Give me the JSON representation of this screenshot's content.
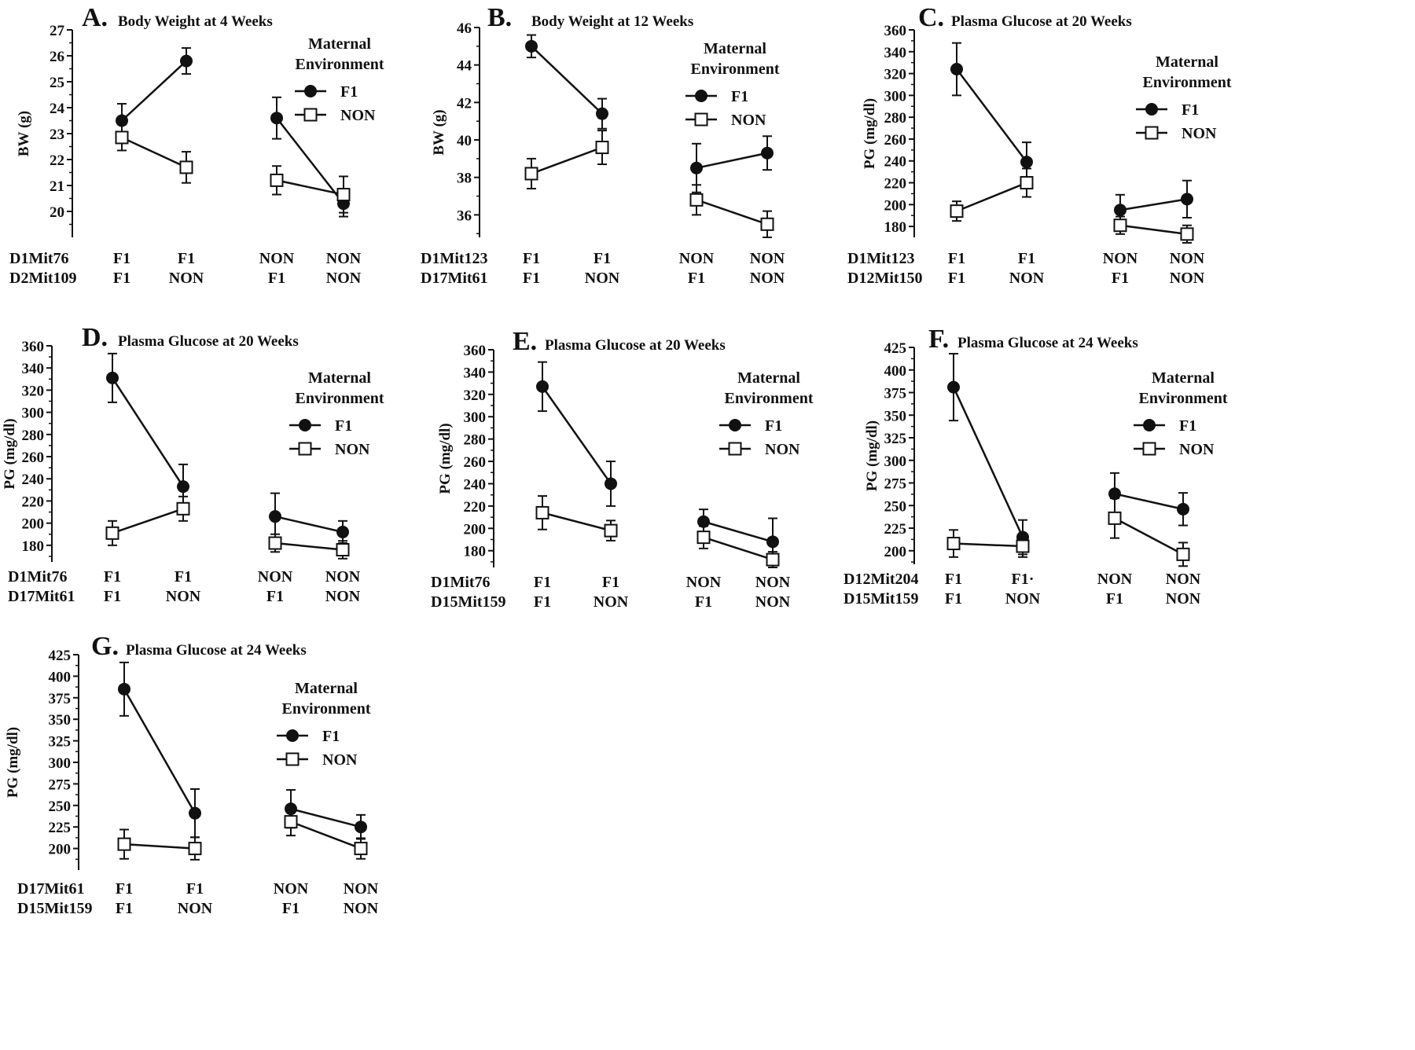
{
  "legend": {
    "title_line1": "Maternal",
    "title_line2": "Environment",
    "series": [
      {
        "name": "F1",
        "marker": "filled-circle"
      },
      {
        "name": "NON",
        "marker": "open-square"
      }
    ]
  },
  "colors": {
    "ink": "#111111",
    "open_fill": "#ffffff"
  },
  "chart_data": [
    {
      "panel": "A.",
      "type": "line",
      "title": "Body Weight at 4 Weeks",
      "ylabel": "BW (g)",
      "ylim": [
        19,
        27
      ],
      "yticks": [
        20,
        21,
        22,
        23,
        24,
        25,
        26,
        27
      ],
      "genotype_rows": [
        {
          "label": "D1Mit76",
          "values": [
            "F1",
            "F1",
            "NON",
            "NON"
          ]
        },
        {
          "label": "D2Mit109",
          "values": [
            "F1",
            "NON",
            "F1",
            "NON"
          ]
        }
      ],
      "series": [
        {
          "name": "F1",
          "values": [
            23.5,
            25.8,
            23.6,
            20.3
          ],
          "errors": [
            0.65,
            0.5,
            0.8,
            0.5
          ]
        },
        {
          "name": "NON",
          "values": [
            22.85,
            21.7,
            21.2,
            20.65
          ],
          "errors": [
            0.5,
            0.6,
            0.55,
            0.7
          ]
        }
      ]
    },
    {
      "panel": "B.",
      "type": "line",
      "title": "Body Weight at 12 Weeks",
      "ylabel": "BW (g)",
      "ylim": [
        34.8,
        46
      ],
      "yticks": [
        36,
        38,
        40,
        42,
        44,
        46
      ],
      "genotype_rows": [
        {
          "label": "D1Mit123",
          "values": [
            "F1",
            "F1",
            "NON",
            "NON"
          ]
        },
        {
          "label": "D17Mit61",
          "values": [
            "F1",
            "NON",
            "F1",
            "NON"
          ]
        }
      ],
      "series": [
        {
          "name": "F1",
          "values": [
            45.0,
            41.4,
            38.5,
            39.3
          ],
          "errors": [
            0.6,
            0.8,
            1.3,
            0.9
          ]
        },
        {
          "name": "NON",
          "values": [
            38.2,
            39.6,
            36.8,
            35.5
          ],
          "errors": [
            0.8,
            0.9,
            0.8,
            0.7
          ]
        }
      ]
    },
    {
      "panel": "C.",
      "type": "line",
      "title": "Plasma Glucose at 20 Weeks",
      "ylabel": "PG (mg/dl)",
      "ylim": [
        170,
        360
      ],
      "yticks": [
        180,
        200,
        220,
        240,
        260,
        280,
        300,
        320,
        340,
        360
      ],
      "genotype_rows": [
        {
          "label": "D1Mit123",
          "values": [
            "F1",
            "F1",
            "NON",
            "NON"
          ]
        },
        {
          "label": "D12Mit150",
          "values": [
            "F1",
            "NON",
            "F1",
            "NON"
          ]
        }
      ],
      "series": [
        {
          "name": "F1",
          "values": [
            324,
            239,
            195,
            205
          ],
          "errors": [
            24,
            18,
            14,
            17
          ]
        },
        {
          "name": "NON",
          "values": [
            194,
            220,
            181,
            173
          ],
          "errors": [
            9,
            13,
            8,
            8
          ]
        }
      ]
    },
    {
      "panel": "D.",
      "type": "line",
      "title": "Plasma Glucose at 20 Weeks",
      "ylabel": "PG (mg/dl)",
      "ylim": [
        165,
        360
      ],
      "yticks": [
        180,
        200,
        220,
        240,
        260,
        280,
        300,
        320,
        340,
        360
      ],
      "genotype_rows": [
        {
          "label": "D1Mit76",
          "values": [
            "F1",
            "F1",
            "NON",
            "NON"
          ]
        },
        {
          "label": "D17Mit61",
          "values": [
            "F1",
            "NON",
            "F1",
            "NON"
          ]
        }
      ],
      "series": [
        {
          "name": "F1",
          "values": [
            331,
            233,
            206,
            192
          ],
          "errors": [
            22,
            20,
            21,
            10
          ]
        },
        {
          "name": "NON",
          "values": [
            191,
            213,
            182,
            176
          ],
          "errors": [
            11,
            11,
            8,
            8
          ]
        }
      ]
    },
    {
      "panel": "E.",
      "type": "line",
      "title": "Plasma Glucose at 20 Weeks",
      "ylabel": "PG (mg/dl)",
      "ylim": [
        165,
        360
      ],
      "yticks": [
        180,
        200,
        220,
        240,
        260,
        280,
        300,
        320,
        340,
        360
      ],
      "genotype_rows": [
        {
          "label": "D1Mit76",
          "values": [
            "F1",
            "F1",
            "NON",
            "NON"
          ]
        },
        {
          "label": "D15Mit159",
          "values": [
            "F1",
            "NON",
            "F1",
            "NON"
          ]
        }
      ],
      "series": [
        {
          "name": "F1",
          "values": [
            327,
            240,
            206,
            188
          ],
          "errors": [
            22,
            20,
            11,
            21
          ]
        },
        {
          "name": "NON",
          "values": [
            214,
            198,
            192,
            172
          ],
          "errors": [
            15,
            9,
            10,
            7
          ]
        }
      ]
    },
    {
      "panel": "F.",
      "type": "line",
      "title": "Plasma Glucose at 24 Weeks",
      "ylabel": "PG (mg/dl)",
      "ylim": [
        185,
        425
      ],
      "yticks": [
        200,
        225,
        250,
        275,
        300,
        325,
        350,
        375,
        400,
        425
      ],
      "genotype_rows": [
        {
          "label": "D12Mit204",
          "values": [
            "F1",
            "F1·",
            "NON",
            "NON"
          ]
        },
        {
          "label": "D15Mit159",
          "values": [
            "F1",
            "NON",
            "F1",
            "NON"
          ]
        }
      ],
      "series": [
        {
          "name": "F1",
          "values": [
            381,
            215,
            263,
            246
          ],
          "errors": [
            37,
            19,
            23,
            18
          ]
        },
        {
          "name": "NON",
          "values": [
            208,
            205,
            236,
            196
          ],
          "errors": [
            15,
            12,
            22,
            13
          ]
        }
      ]
    },
    {
      "panel": "G.",
      "type": "line",
      "title": "Plasma Glucose at 24 Weeks",
      "ylabel": "PG (mg/dl)",
      "ylim": [
        175,
        425
      ],
      "yticks": [
        200,
        225,
        250,
        275,
        300,
        325,
        350,
        375,
        400,
        425
      ],
      "genotype_rows": [
        {
          "label": "D17Mit61",
          "values": [
            "F1",
            "F1",
            "NON",
            "NON"
          ]
        },
        {
          "label": "D15Mit159",
          "values": [
            "F1",
            "NON",
            "F1",
            "NON"
          ]
        }
      ],
      "series": [
        {
          "name": "F1",
          "values": [
            385,
            241,
            246,
            225
          ],
          "errors": [
            31,
            28,
            22,
            14
          ]
        },
        {
          "name": "NON",
          "values": [
            205,
            200,
            231,
            200
          ],
          "errors": [
            17,
            13,
            16,
            12
          ]
        }
      ]
    }
  ]
}
